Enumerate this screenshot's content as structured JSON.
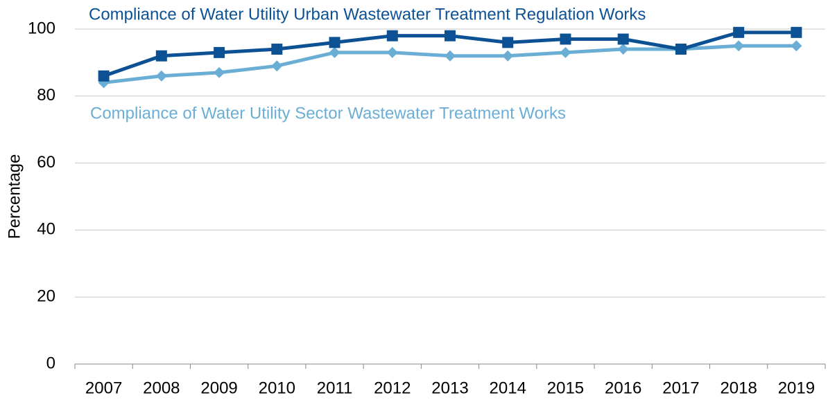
{
  "chart_data": {
    "type": "line",
    "y_label": "Percentage",
    "categories": [
      "2007",
      "2008",
      "2009",
      "2010",
      "2011",
      "2012",
      "2013",
      "2014",
      "2015",
      "2016",
      "2017",
      "2018",
      "2019"
    ],
    "series": [
      {
        "name": "Compliance of Water Utility Urban Wastewater Treatment Regulation Works",
        "color": "#0d5195",
        "marker": "square",
        "values": [
          86,
          92,
          93,
          94,
          96,
          98,
          98,
          96,
          97,
          97,
          94,
          99,
          99
        ]
      },
      {
        "name": "Compliance of Water Utility Sector Wastewater Treatment Works",
        "color": "#6aaed6",
        "marker": "diamond",
        "values": [
          84,
          86,
          87,
          89,
          93,
          93,
          92,
          92,
          93,
          94,
          94,
          95,
          95
        ]
      }
    ],
    "ylim": [
      0,
      100
    ],
    "yticks": [
      0,
      20,
      40,
      60,
      80,
      100
    ],
    "grid": true
  }
}
